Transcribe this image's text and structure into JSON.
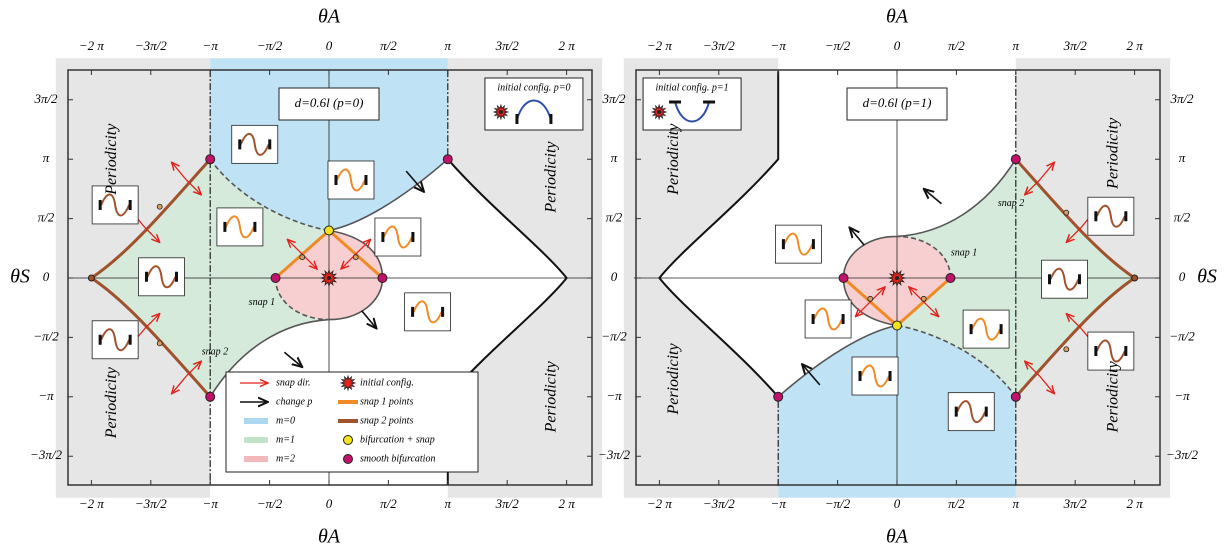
{
  "panels": [
    {
      "x_axis_label": "θA",
      "y_axis_label": "θS",
      "x_ticks": [
        "−2 π",
        "−3π/2",
        "−π",
        "−π/2",
        "0",
        "π/2",
        "π",
        "3π/2",
        "2 π"
      ],
      "y_ticks": [
        "3π/2",
        "π",
        "π/2",
        "0",
        "−π/2",
        "−π",
        "−3π/2"
      ],
      "title": "d=0.6l (p=0)",
      "inset_label": "initial config. p=0",
      "periodicity": [
        "Periodicity",
        "Periodicity",
        "Periodicity",
        "Periodicity"
      ],
      "snap_labels": [
        "snap 1",
        "snap 2"
      ]
    },
    {
      "x_axis_label": "θA",
      "y_axis_label": "θS",
      "x_ticks": [
        "−2 π",
        "−3π/2",
        "−π",
        "−π/2",
        "0",
        "π/2",
        "π",
        "3π/2",
        "2 π"
      ],
      "y_ticks": [
        "3π/2",
        "π",
        "π/2",
        "0",
        "−π/2",
        "−π",
        "−3π/2"
      ],
      "title": "d=0.6l (p=1)",
      "inset_label": "initial config. p=1",
      "periodicity": [
        "Periodicity",
        "Periodicity",
        "Periodicity",
        "Periodicity"
      ],
      "snap_labels": [
        "snap 1",
        "snap 2"
      ]
    }
  ],
  "legend": [
    "snap dir.",
    "change p",
    "m=0",
    "m=1",
    "m=2",
    "initial config.",
    "snap 1 points",
    "snap 2 points",
    "bifurcation + snap",
    "smooth bifurcation"
  ]
}
